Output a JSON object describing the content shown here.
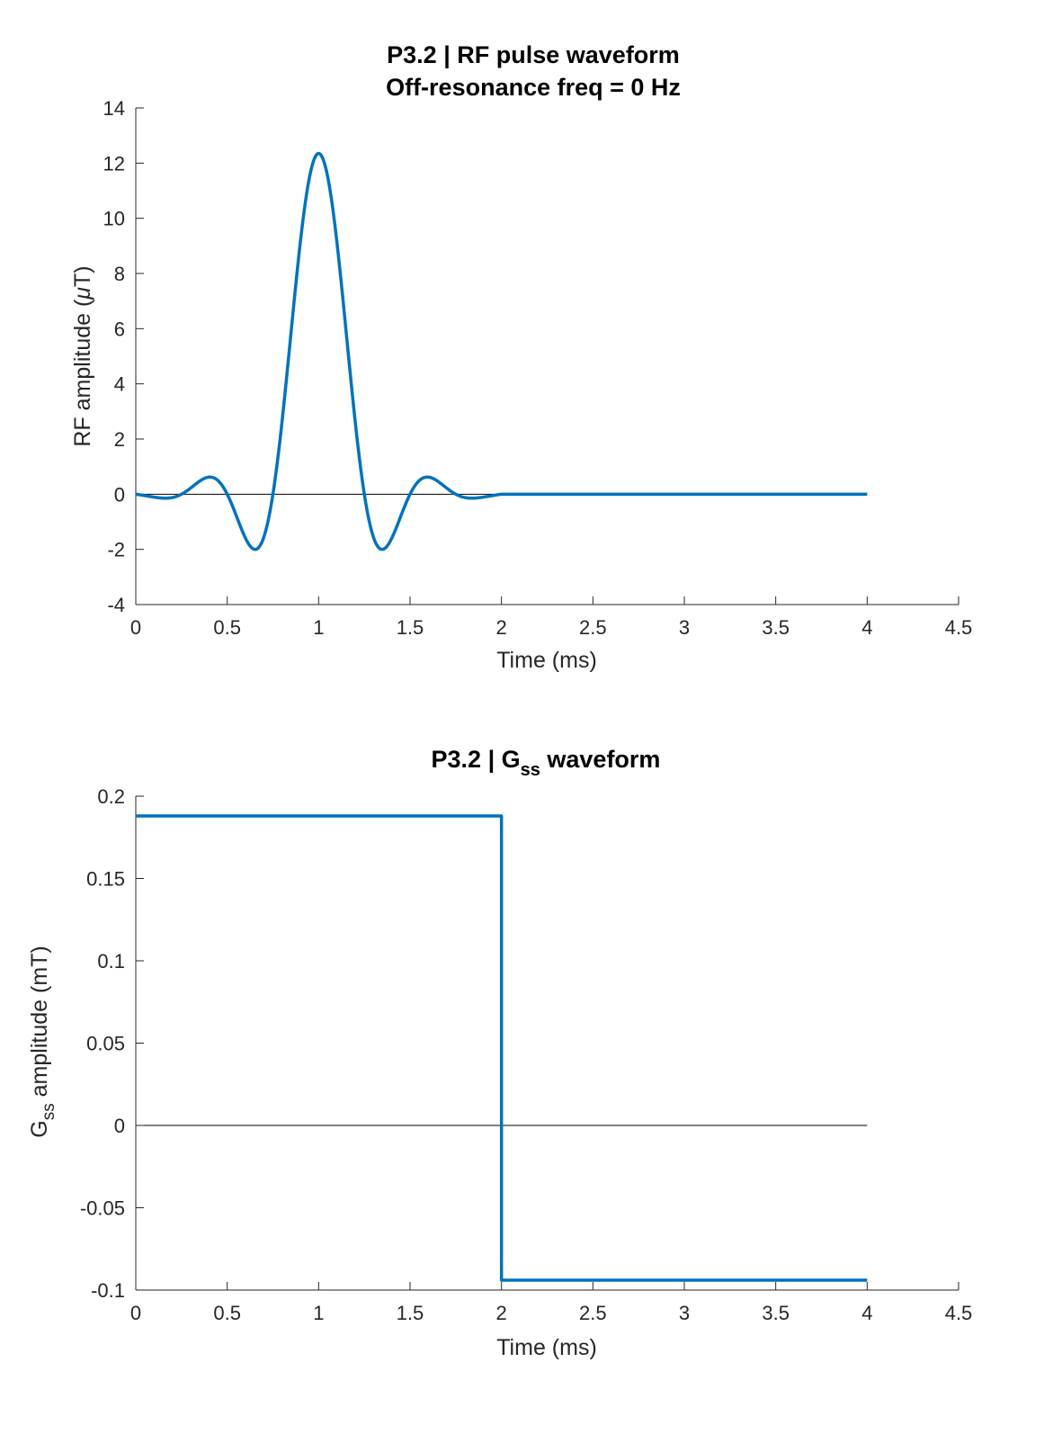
{
  "chart_data": [
    {
      "type": "line",
      "title": "P3.2 | RF pulse waveform",
      "subtitle": "Off-resonance freq = 0 Hz",
      "xlabel": "Time (ms)",
      "ylabel_prefix": "RF amplitude (",
      "ylabel_symbol": "μ",
      "ylabel_suffix": "T)",
      "xlim": [
        0,
        4.5
      ],
      "ylim": [
        -4,
        14
      ],
      "xticks": [
        0,
        0.5,
        1,
        1.5,
        2,
        2.5,
        3,
        3.5,
        4,
        4.5
      ],
      "xtick_labels": [
        "0",
        "0.5",
        "1",
        "1.5",
        "2",
        "2.5",
        "3",
        "3.5",
        "4",
        "4.5"
      ],
      "yticks": [
        -4,
        -2,
        0,
        2,
        4,
        6,
        8,
        10,
        12,
        14
      ],
      "ytick_labels": [
        "-4",
        "-2",
        "0",
        "2",
        "4",
        "6",
        "8",
        "10",
        "12",
        "14"
      ],
      "zero_line": true,
      "grid": false,
      "line_color": "#0072BD",
      "series": [
        {
          "pulse": "sinc",
          "center": 1.0,
          "zero_crossing_spacing": 0.25,
          "peak": 12.35,
          "window": "hamming",
          "pulse_end": 2.0,
          "end": 4.0
        }
      ]
    },
    {
      "type": "line",
      "title_prefix": "P3.2 | G",
      "title_sub": "ss",
      "title_suffix": " waveform",
      "xlabel": "Time (ms)",
      "ylabel_prefix": "G",
      "ylabel_sub": "ss",
      "ylabel_suffix": " amplitude (mT)",
      "xlim": [
        0,
        4.5
      ],
      "ylim": [
        -0.1,
        0.2
      ],
      "xticks": [
        0,
        0.5,
        1,
        1.5,
        2,
        2.5,
        3,
        3.5,
        4,
        4.5
      ],
      "xtick_labels": [
        "0",
        "0.5",
        "1",
        "1.5",
        "2",
        "2.5",
        "3",
        "3.5",
        "4",
        "4.5"
      ],
      "yticks": [
        -0.1,
        -0.05,
        0,
        0.05,
        0.1,
        0.15,
        0.2
      ],
      "ytick_labels": [
        "-0.1",
        "-0.05",
        "0",
        "0.05",
        "0.1",
        "0.15",
        "0.2"
      ],
      "zero_line": true,
      "grid": false,
      "line_color": "#0072BD",
      "series": [
        {
          "x": [
            0,
            2.0,
            2.0,
            4.0
          ],
          "y": [
            0.188,
            0.188,
            -0.094,
            -0.094
          ]
        }
      ]
    }
  ]
}
